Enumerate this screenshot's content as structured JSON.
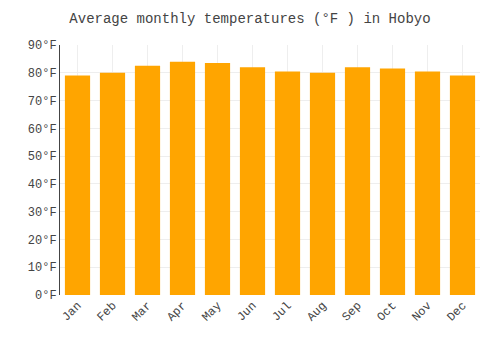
{
  "chart_data": {
    "type": "bar",
    "title": "Average monthly temperatures (°F ) in Hobyo",
    "categories": [
      "Jan",
      "Feb",
      "Mar",
      "Apr",
      "May",
      "Jun",
      "Jul",
      "Aug",
      "Sep",
      "Oct",
      "Nov",
      "Dec"
    ],
    "values": [
      79,
      80,
      82.5,
      84,
      83.5,
      82,
      80.5,
      80,
      82,
      81.5,
      80.5,
      79
    ],
    "color": "#FFA500",
    "ylim": [
      0,
      90
    ],
    "yticks": [
      {
        "value": 0,
        "label": "0°F"
      },
      {
        "value": 10,
        "label": "10°F"
      },
      {
        "value": 20,
        "label": "20°F"
      },
      {
        "value": 30,
        "label": "30°F"
      },
      {
        "value": 40,
        "label": "40°F"
      },
      {
        "value": 50,
        "label": "50°F"
      },
      {
        "value": 60,
        "label": "60°F"
      },
      {
        "value": 70,
        "label": "70°F"
      },
      {
        "value": 80,
        "label": "80°F"
      },
      {
        "value": 90,
        "label": "90°F"
      }
    ],
    "grid": true
  }
}
